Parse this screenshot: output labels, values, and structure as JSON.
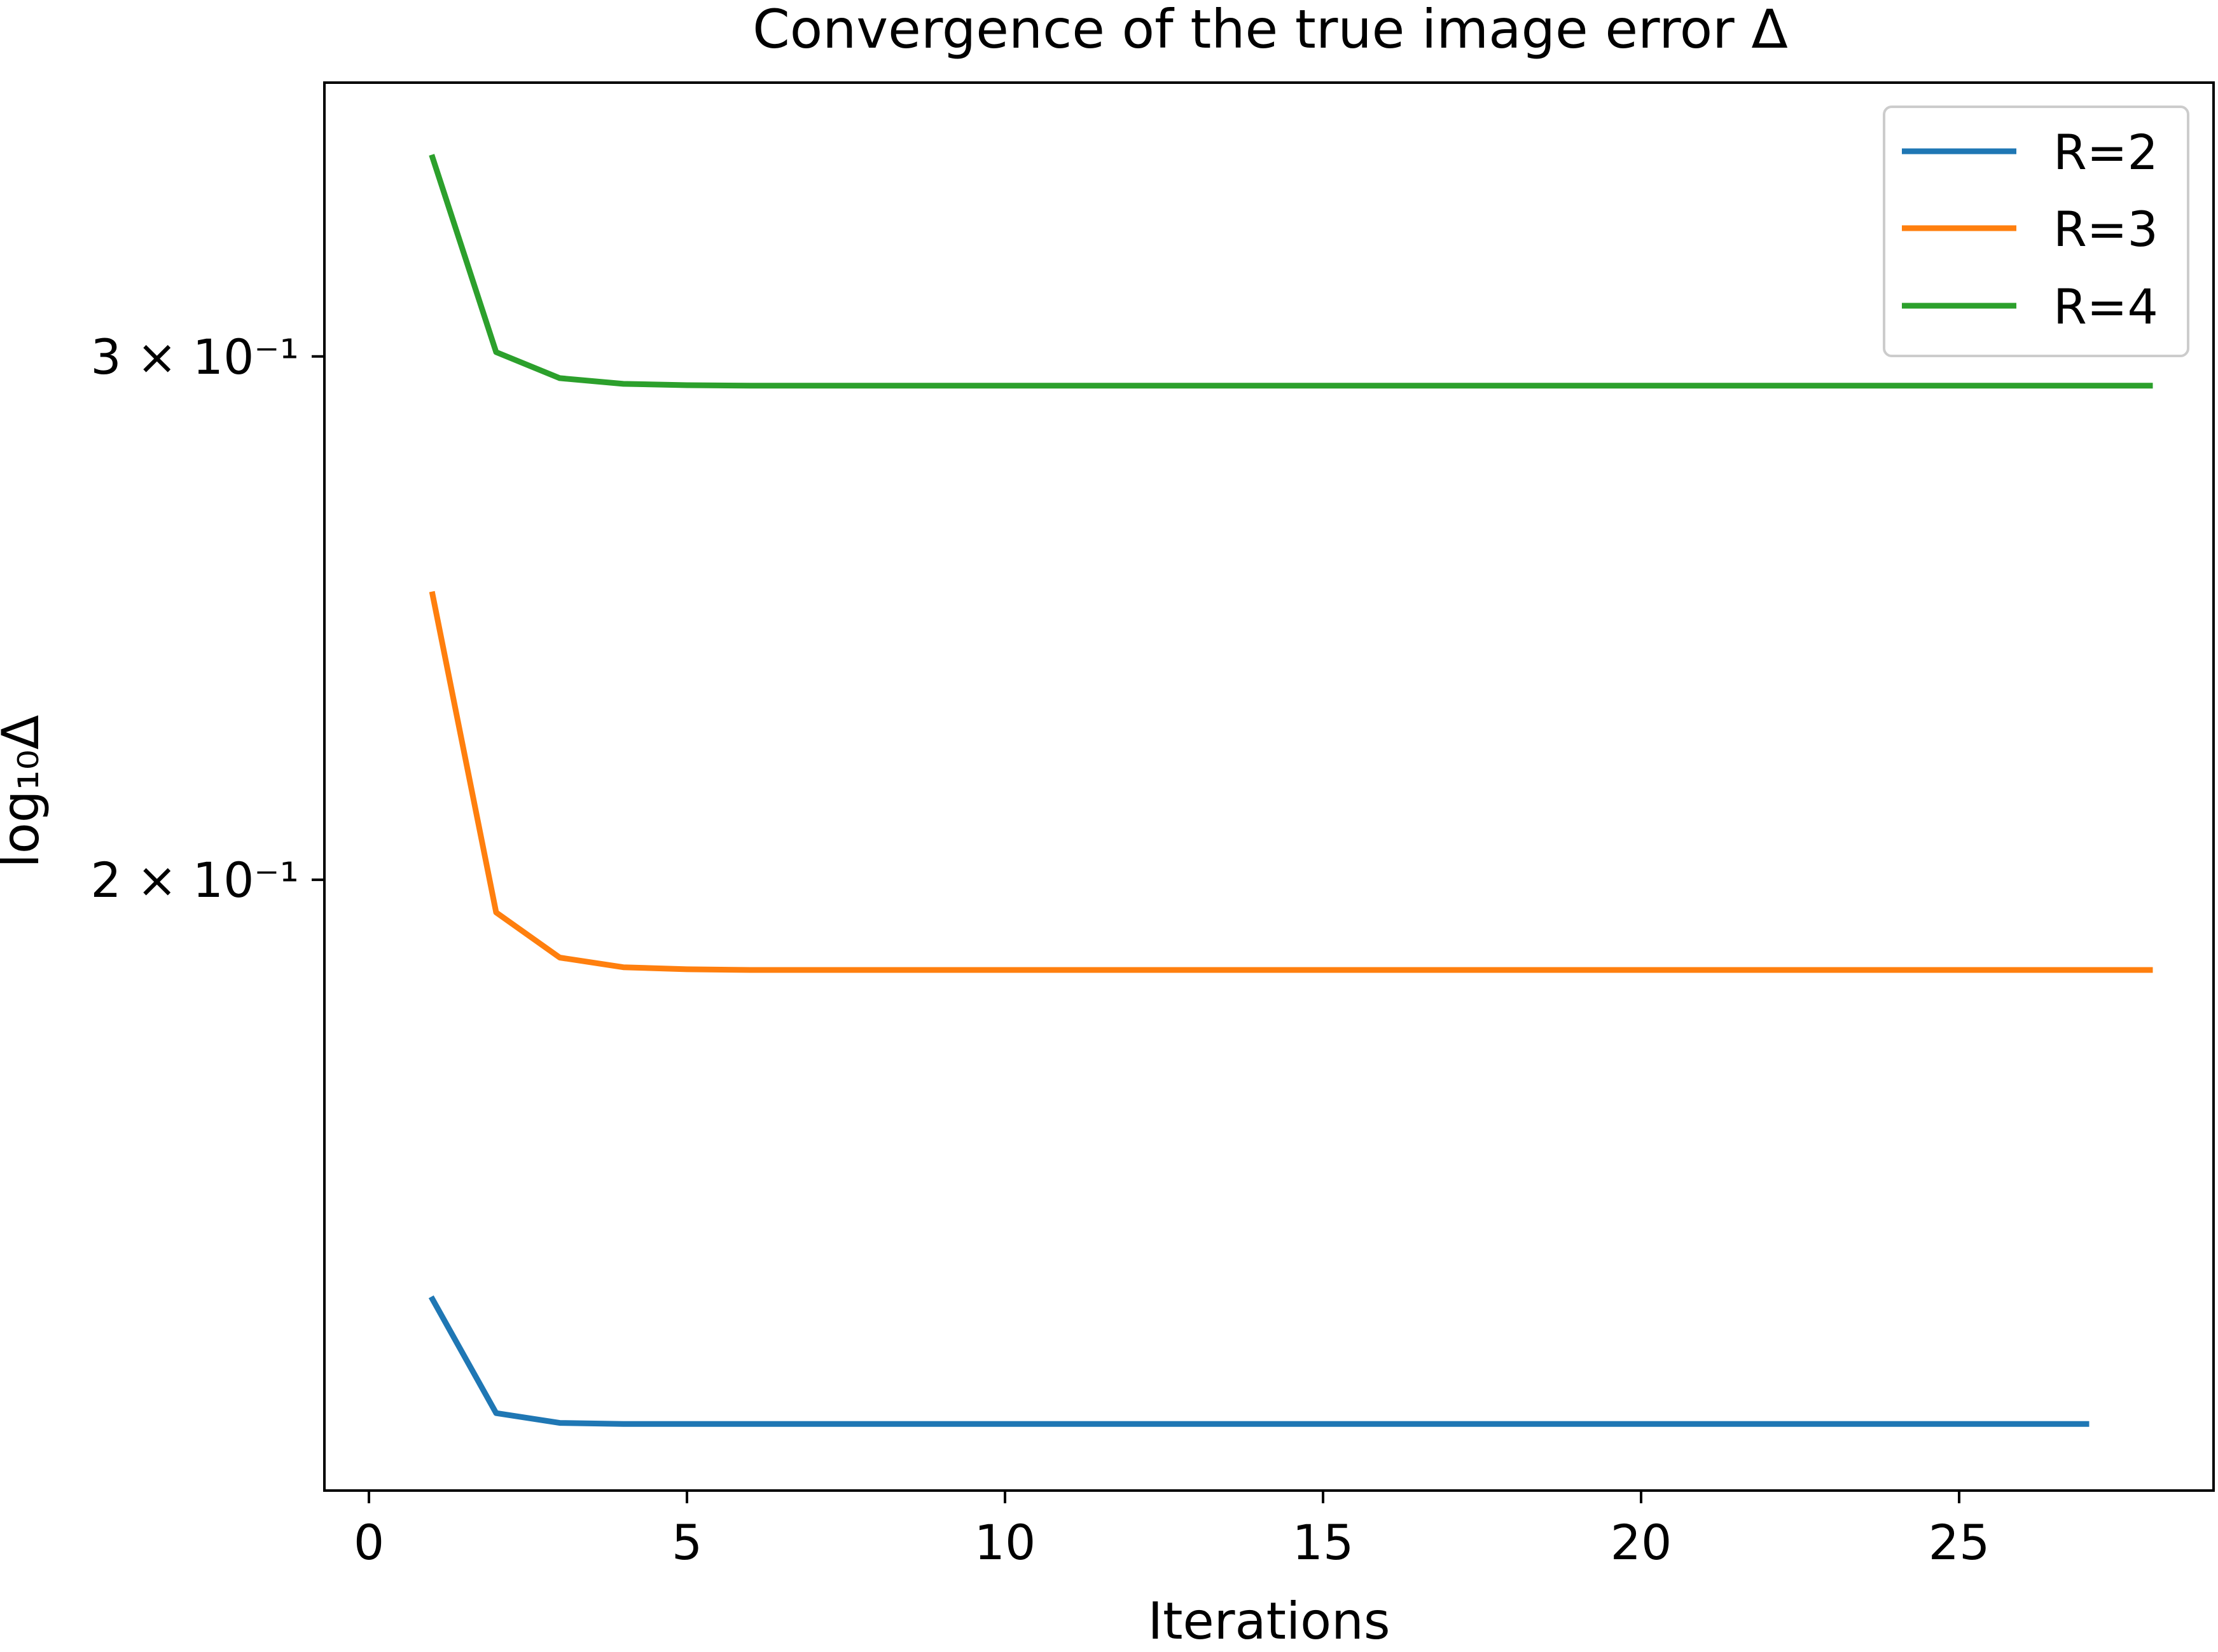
{
  "chart_data": {
    "type": "line",
    "title": "Convergence of the true image error Δ",
    "xlabel": "Iterations",
    "ylabel": "log₁₀Δ",
    "y_scale": "log",
    "xlim": [
      -0.7,
      29.0
    ],
    "ylim": [
      0.1246,
      0.3709
    ],
    "grid": false,
    "legend_position": "top-right",
    "x_ticks": [
      {
        "value": 0,
        "label": "0"
      },
      {
        "value": 5,
        "label": "5"
      },
      {
        "value": 10,
        "label": "10"
      },
      {
        "value": 15,
        "label": "15"
      },
      {
        "value": 20,
        "label": "20"
      },
      {
        "value": 25,
        "label": "25"
      }
    ],
    "y_ticks": [
      {
        "value": 0.2,
        "label": "2 × 10⁻¹"
      },
      {
        "value": 0.3,
        "label": "3 × 10⁻¹"
      }
    ],
    "series": [
      {
        "name": "R=2",
        "color": "#1f77b4",
        "x": [
          1,
          2,
          3,
          4,
          5,
          6,
          7,
          8,
          9,
          10,
          11,
          12,
          13,
          14,
          15,
          16,
          17,
          18,
          19,
          20,
          21,
          22,
          23,
          24,
          25,
          26,
          27
        ],
        "y": [
          0.1445,
          0.1323,
          0.1313,
          0.1312,
          0.1312,
          0.1312,
          0.1312,
          0.1312,
          0.1312,
          0.1312,
          0.1312,
          0.1312,
          0.1312,
          0.1312,
          0.1312,
          0.1312,
          0.1312,
          0.1312,
          0.1312,
          0.1312,
          0.1312,
          0.1312,
          0.1312,
          0.1312,
          0.1312,
          0.1312,
          0.1312
        ]
      },
      {
        "name": "R=3",
        "color": "#ff7f0e",
        "x": [
          1,
          2,
          3,
          4,
          5,
          6,
          7,
          8,
          9,
          10,
          11,
          12,
          13,
          14,
          15,
          16,
          17,
          18,
          19,
          20,
          21,
          22,
          23,
          24,
          25,
          26,
          27,
          28
        ],
        "y": [
          0.2495,
          0.195,
          0.1883,
          0.1869,
          0.1866,
          0.1865,
          0.1865,
          0.1865,
          0.1865,
          0.1865,
          0.1865,
          0.1865,
          0.1865,
          0.1865,
          0.1865,
          0.1865,
          0.1865,
          0.1865,
          0.1865,
          0.1865,
          0.1865,
          0.1865,
          0.1865,
          0.1865,
          0.1865,
          0.1865,
          0.1865,
          0.1865
        ]
      },
      {
        "name": "R=4",
        "color": "#2ca02c",
        "x": [
          1,
          2,
          3,
          4,
          5,
          6,
          7,
          8,
          9,
          10,
          11,
          12,
          13,
          14,
          15,
          16,
          17,
          18,
          19,
          20,
          21,
          22,
          23,
          24,
          25,
          26,
          27,
          28
        ],
        "y": [
          0.35,
          0.301,
          0.295,
          0.2937,
          0.2934,
          0.2933,
          0.2933,
          0.2933,
          0.2933,
          0.2933,
          0.2933,
          0.2933,
          0.2933,
          0.2933,
          0.2933,
          0.2933,
          0.2933,
          0.2933,
          0.2933,
          0.2933,
          0.2933,
          0.2933,
          0.2933,
          0.2933,
          0.2933,
          0.2933,
          0.2933,
          0.2933
        ]
      }
    ]
  }
}
